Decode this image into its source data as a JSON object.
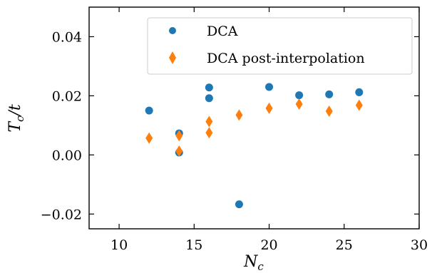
{
  "chart_data": {
    "type": "scatter",
    "title": "",
    "xlabel": "N_c",
    "ylabel": "T_c/t",
    "xlim": [
      8,
      30
    ],
    "ylim": [
      -0.025,
      0.05
    ],
    "xticks": [
      10,
      15,
      20,
      25,
      30
    ],
    "yticks": [
      -0.02,
      0.0,
      0.02,
      0.04
    ],
    "xtick_labels": [
      "10",
      "15",
      "20",
      "25",
      "30"
    ],
    "ytick_labels": [
      "−0.02",
      "0.00",
      "0.02",
      "0.04"
    ],
    "grid": false,
    "legend_position": "top-right",
    "series": [
      {
        "name": "DCA",
        "marker": "circle",
        "color": "#1f77b4",
        "points": [
          [
            12,
            0.015
          ],
          [
            14,
            0.0073
          ],
          [
            14,
            0.0008
          ],
          [
            16,
            0.0228
          ],
          [
            16,
            0.0192
          ],
          [
            18,
            -0.0167
          ],
          [
            20,
            0.023
          ],
          [
            22,
            0.0202
          ],
          [
            24,
            0.0205
          ],
          [
            26,
            0.0212
          ]
        ]
      },
      {
        "name": "DCA post-interpolation",
        "marker": "diamond",
        "color": "#ff7f0e",
        "points": [
          [
            12,
            0.0057
          ],
          [
            14,
            0.0065
          ],
          [
            14,
            0.0013
          ],
          [
            16,
            0.0113
          ],
          [
            16,
            0.0075
          ],
          [
            18,
            0.0135
          ],
          [
            20,
            0.0158
          ],
          [
            22,
            0.0172
          ],
          [
            24,
            0.0148
          ],
          [
            26,
            0.0168
          ]
        ]
      }
    ]
  }
}
